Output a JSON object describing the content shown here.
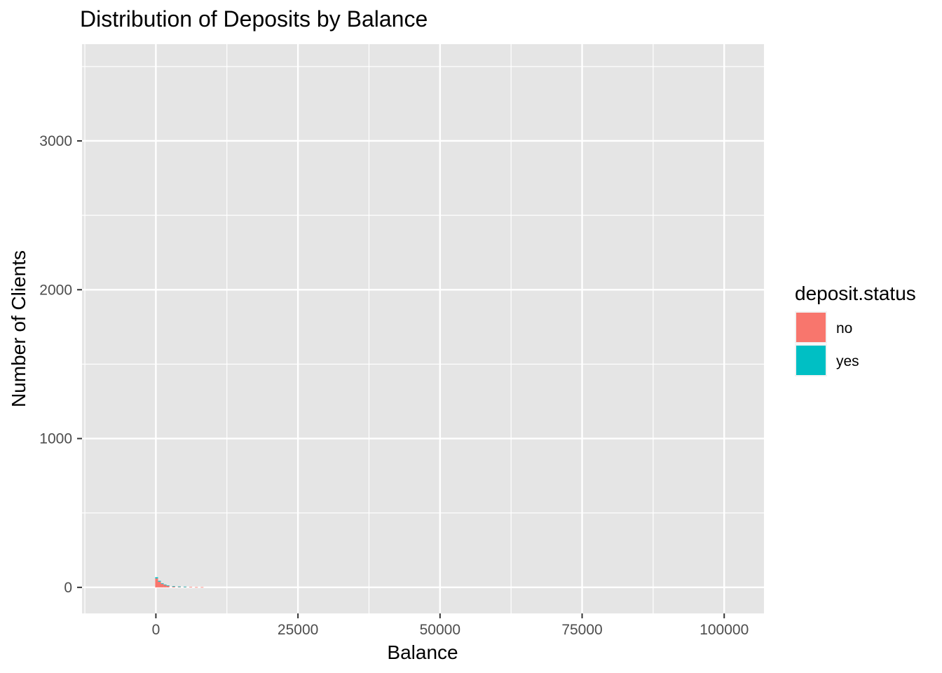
{
  "chart_data": {
    "type": "bar",
    "title": "Distribution of Deposits by Balance",
    "xlabel": "Balance",
    "ylabel": "Number of Clients",
    "xlim": [
      -13000,
      107000
    ],
    "ylim": [
      -175,
      3650
    ],
    "x_ticks": [
      0,
      25000,
      50000,
      75000,
      100000
    ],
    "x_tick_labels": [
      "0",
      "25000",
      "50000",
      "75000",
      "100000"
    ],
    "y_ticks": [
      0,
      1000,
      2000,
      3000
    ],
    "y_tick_labels": [
      "0",
      "1000",
      "2000",
      "3000"
    ],
    "grid": true,
    "legend_position": "right",
    "legend_title": "deposit.status",
    "colors": {
      "panel": "#e5e5e5",
      "grid": "#ffffff"
    },
    "series": [
      {
        "name": "no",
        "color": "#F8766D",
        "x": [
          0,
          500,
          1000,
          1500,
          2000,
          3000,
          4000,
          5000,
          6000,
          7000,
          8000
        ],
        "values": [
          60,
          38,
          24,
          16,
          11,
          7,
          5,
          4,
          3,
          2,
          2
        ]
      },
      {
        "name": "yes",
        "color": "#00BFC4",
        "x": [
          0,
          500,
          1000,
          1500,
          2000,
          3000,
          4000,
          5000,
          6000,
          7000,
          8000
        ],
        "values": [
          8,
          6,
          4,
          3,
          2,
          1,
          1,
          1,
          0,
          0,
          0
        ]
      }
    ]
  }
}
